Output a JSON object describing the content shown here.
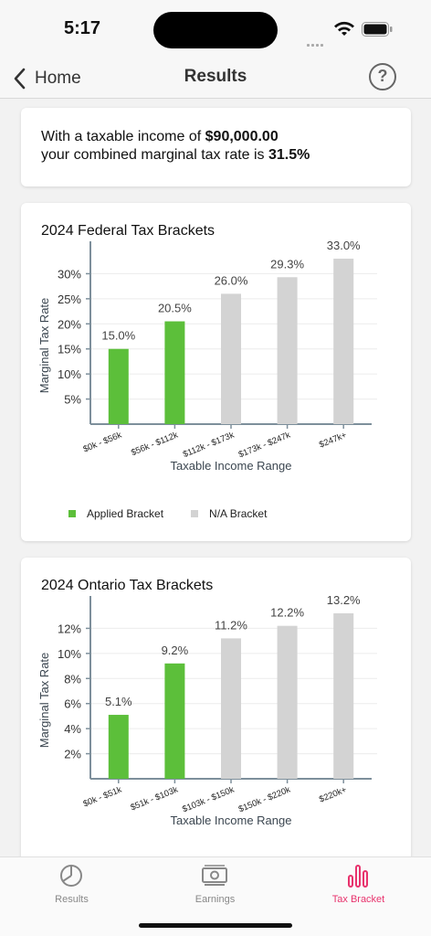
{
  "status_bar": {
    "time": "5:17"
  },
  "nav": {
    "back_label": "Home",
    "title": "Results",
    "help_icon": "question-mark-icon"
  },
  "summary": {
    "line1_prefix": "With a taxable income of ",
    "income": "$90,000.00",
    "line2_prefix": "your combined marginal tax rate is ",
    "rate": "31.5%"
  },
  "colors": {
    "applied": "#5cbf3a",
    "na": "#d3d3d3",
    "accent": "#e8336d",
    "axis": "#7d8f9b"
  },
  "legend": {
    "applied_label": "Applied Bracket",
    "na_label": "N/A Bracket"
  },
  "chart_data": [
    {
      "type": "bar",
      "title": "2024 Federal Tax Brackets",
      "xlabel": "Taxable Income Range",
      "ylabel": "Marginal Tax Rate",
      "categories": [
        "$0k - $56k",
        "$56k - $112k",
        "$112k - $173k",
        "$173k - $247k",
        "$247k+"
      ],
      "values": [
        15.0,
        20.5,
        26.0,
        29.3,
        33.0
      ],
      "value_labels": [
        "15.0%",
        "20.5%",
        "26.0%",
        "29.3%",
        "33.0%"
      ],
      "applied": [
        true,
        true,
        false,
        false,
        false
      ],
      "yticks": [
        5,
        10,
        15,
        20,
        25,
        30
      ],
      "ytick_labels": [
        "5%",
        "10%",
        "15%",
        "20%",
        "25%",
        "30%"
      ],
      "ylim": [
        0,
        35
      ],
      "legend": true
    },
    {
      "type": "bar",
      "title": "2024 Ontario Tax Brackets",
      "xlabel": "Taxable Income Range",
      "ylabel": "Marginal Tax Rate",
      "categories": [
        "$0k - $51k",
        "$51k - $103k",
        "$103k - $150k",
        "$150k - $220k",
        "$220k+"
      ],
      "values": [
        5.1,
        9.2,
        11.2,
        12.2,
        13.2
      ],
      "value_labels": [
        "5.1%",
        "9.2%",
        "11.2%",
        "12.2%",
        "13.2%"
      ],
      "applied": [
        true,
        true,
        false,
        false,
        false
      ],
      "yticks": [
        2,
        4,
        6,
        8,
        10,
        12
      ],
      "ytick_labels": [
        "2%",
        "4%",
        "6%",
        "8%",
        "10%",
        "12%"
      ],
      "ylim": [
        0,
        14
      ],
      "legend": false
    }
  ],
  "tabs": [
    {
      "label": "Results",
      "icon": "pie-chart-icon",
      "active": false
    },
    {
      "label": "Earnings",
      "icon": "money-icon",
      "active": false
    },
    {
      "label": "Tax Bracket",
      "icon": "bar-chart-icon",
      "active": true
    }
  ]
}
